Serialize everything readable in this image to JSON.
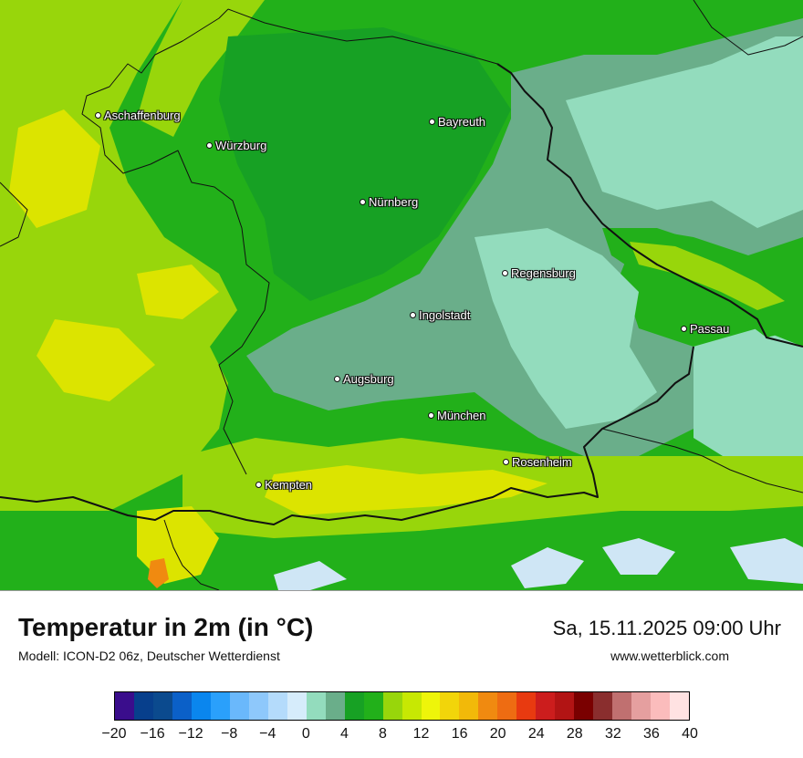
{
  "map": {
    "cities": [
      {
        "key": "aschaffenburg",
        "name": "Aschaffenburg"
      },
      {
        "key": "wuerzburg",
        "name": "Würzburg"
      },
      {
        "key": "bayreuth",
        "name": "Bayreuth"
      },
      {
        "key": "nuernberg",
        "name": "Nürnberg"
      },
      {
        "key": "regensburg",
        "name": "Regensburg"
      },
      {
        "key": "ingolstadt",
        "name": "Ingolstadt"
      },
      {
        "key": "passau",
        "name": "Passau"
      },
      {
        "key": "augsburg",
        "name": "Augsburg"
      },
      {
        "key": "muenchen",
        "name": "München"
      },
      {
        "key": "rosenheim",
        "name": "Rosenheim"
      },
      {
        "key": "kempten",
        "name": "Kempten"
      }
    ],
    "colors": {
      "cold_fog": "#6aae8a",
      "fog_light": "#93dcbd",
      "green_dark": "#17a124",
      "green": "#22b01a",
      "yellow_green": "#98d60b",
      "yellow": "#dce400",
      "orange": "#f08a10",
      "snow": "#cfe6f5",
      "border": "#111111"
    }
  },
  "footer": {
    "title": "Temperatur in 2m (in °C)",
    "model": "Modell: ICON-D2 06z, Deutscher Wetterdienst",
    "datetime": "Sa, 15.11.2025 09:00 Uhr",
    "website": "www.wetterblick.com"
  },
  "legend": {
    "colors": [
      "#3a0d8c",
      "#073f8c",
      "#0b4a8e",
      "#0b60c8",
      "#0a86ee",
      "#2aa0fb",
      "#6ab8fb",
      "#8ec8fb",
      "#b4dbfb",
      "#d6ecfb",
      "#93dcbd",
      "#6aae8a",
      "#17a124",
      "#22b01a",
      "#98d60b",
      "#c7e803",
      "#eef50a",
      "#f2d50a",
      "#f2b909",
      "#f08a10",
      "#ee6c12",
      "#e83a10",
      "#cc1d1d",
      "#b21414",
      "#7a0000",
      "#8a2e2e",
      "#c07070",
      "#e59f9f",
      "#fbbcbc",
      "#ffe2e2"
    ],
    "ticks": [
      "−20",
      "−16",
      "−12",
      "−8",
      "−4",
      "0",
      "4",
      "8",
      "12",
      "16",
      "20",
      "24",
      "28",
      "32",
      "36",
      "40"
    ]
  }
}
